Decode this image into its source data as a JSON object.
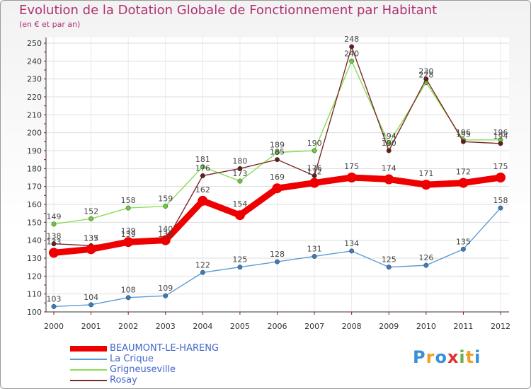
{
  "header": {
    "title": "Evolution de la Dotation Globale de Fonctionnement par Habitant",
    "subtitle": "(en € et par an)"
  },
  "logo": {
    "text": "Proxiti",
    "letters": [
      "P",
      "r",
      "o",
      "x",
      "i",
      "t",
      "i"
    ],
    "colors": [
      "#3a8fd8",
      "#f0a020",
      "#3a8fd8",
      "#e03030",
      "#6ab04c",
      "#f0a020",
      "#3a8fd8"
    ]
  },
  "chart_data": {
    "type": "line",
    "title": "Evolution de la Dotation Globale de Fonctionnement par Habitant",
    "ylabel": "(en € et par an)",
    "xlabel": "",
    "ylim": [
      100,
      250
    ],
    "yticks": [
      100,
      110,
      120,
      130,
      140,
      150,
      160,
      170,
      180,
      190,
      200,
      210,
      220,
      230,
      240,
      250
    ],
    "x": [
      2000,
      2001,
      2002,
      2003,
      2004,
      2005,
      2006,
      2007,
      2008,
      2009,
      2010,
      2011,
      2012
    ],
    "grid": true,
    "legend": "bottom-left",
    "series": [
      {
        "name": "BEAUMONT-LE-HARENG",
        "color": "#ee0000",
        "marker": "#ee0000",
        "labelColor": "#444444",
        "values": [
          133,
          135,
          139,
          140,
          162,
          154,
          169,
          172,
          175,
          174,
          171,
          172,
          175
        ]
      },
      {
        "name": "La Crique",
        "color": "#5b9bd5",
        "marker": "#3a7bbf",
        "labelColor": "#444444",
        "values": [
          103,
          104,
          108,
          109,
          122,
          125,
          128,
          131,
          134,
          125,
          126,
          135,
          158
        ]
      },
      {
        "name": "Grigneuseville",
        "color": "#88dd55",
        "marker": "#66cc33",
        "labelColor": "#444444",
        "values": [
          149,
          152,
          158,
          159,
          181,
          173,
          189,
          190,
          240,
          194,
          228,
          196,
          196
        ]
      },
      {
        "name": "Rosay",
        "color": "#7a2a2a",
        "marker": "#6a1a1a",
        "labelColor": "#444444",
        "values": [
          138,
          137,
          139,
          139,
          176,
          180,
          185,
          176,
          248,
          190,
          230,
          195,
          194
        ]
      }
    ]
  }
}
